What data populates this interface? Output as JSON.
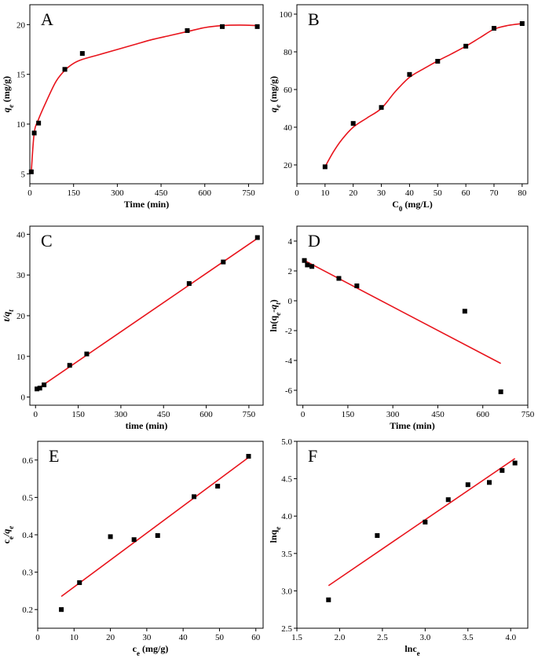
{
  "chart_data": [
    {
      "panel": "A",
      "type": "scatter",
      "letter": "A",
      "xlabel": [
        "Time (min)"
      ],
      "ylabel": [
        {
          "t": "q",
          "it": true
        },
        {
          "t": "e",
          "sub": true,
          "it": true
        },
        {
          "t": " (mg/g)"
        }
      ],
      "xlim": [
        0,
        800
      ],
      "ylim": [
        4,
        22
      ],
      "xticks": [
        0,
        150,
        300,
        450,
        600,
        750
      ],
      "yticks": [
        5,
        10,
        15,
        20
      ],
      "points": [
        [
          5,
          5.2
        ],
        [
          15,
          9.1
        ],
        [
          30,
          10.1
        ],
        [
          120,
          15.5
        ],
        [
          180,
          17.1
        ],
        [
          540,
          19.4
        ],
        [
          660,
          19.8
        ],
        [
          780,
          19.8
        ]
      ],
      "curve": [
        [
          5,
          5.2
        ],
        [
          15,
          9.1
        ],
        [
          30,
          10.5
        ],
        [
          60,
          12.5
        ],
        [
          90,
          14.3
        ],
        [
          120,
          15.4
        ],
        [
          150,
          16.1
        ],
        [
          180,
          16.5
        ],
        [
          240,
          17.0
        ],
        [
          300,
          17.5
        ],
        [
          360,
          18.0
        ],
        [
          420,
          18.5
        ],
        [
          480,
          18.9
        ],
        [
          540,
          19.3
        ],
        [
          600,
          19.7
        ],
        [
          660,
          19.9
        ],
        [
          720,
          19.95
        ],
        [
          780,
          19.9
        ]
      ],
      "legend": false
    },
    {
      "panel": "B",
      "type": "scatter",
      "letter": "B",
      "xlabel": [
        {
          "t": "C"
        },
        {
          "t": "0",
          "sub": true
        },
        {
          "t": " (mg/L)"
        }
      ],
      "ylabel": [
        {
          "t": "q",
          "it": true
        },
        {
          "t": "e",
          "sub": true,
          "it": true
        },
        {
          "t": " (mg/g)"
        }
      ],
      "xlim": [
        0,
        82
      ],
      "ylim": [
        10,
        105
      ],
      "xticks": [
        0,
        10,
        20,
        30,
        40,
        50,
        60,
        70,
        80
      ],
      "yticks": [
        20,
        40,
        60,
        80,
        100
      ],
      "points": [
        [
          10,
          19
        ],
        [
          20,
          42
        ],
        [
          30,
          50.5
        ],
        [
          40,
          68
        ],
        [
          50,
          75
        ],
        [
          60,
          83
        ],
        [
          70,
          92.5
        ],
        [
          80,
          95
        ]
      ],
      "curve": [
        [
          10,
          19
        ],
        [
          13,
          27
        ],
        [
          16,
          33.5
        ],
        [
          20,
          40
        ],
        [
          25,
          45
        ],
        [
          30,
          50
        ],
        [
          35,
          59
        ],
        [
          40,
          66.5
        ],
        [
          45,
          71
        ],
        [
          50,
          75.2
        ],
        [
          55,
          79
        ],
        [
          60,
          83
        ],
        [
          65,
          87.5
        ],
        [
          70,
          92
        ],
        [
          75,
          94
        ],
        [
          80,
          95
        ]
      ],
      "legend": false
    },
    {
      "panel": "C",
      "type": "scatter",
      "letter": "C",
      "xlabel": [
        "time (min)"
      ],
      "ylabel": [
        {
          "t": "t/q",
          "it": true
        },
        {
          "t": "t",
          "sub": true,
          "it": true
        }
      ],
      "xlim": [
        -20,
        800
      ],
      "ylim": [
        -2,
        42
      ],
      "xticks": [
        0,
        150,
        300,
        450,
        600,
        750
      ],
      "yticks": [
        0,
        10,
        20,
        30,
        40
      ],
      "points": [
        [
          5,
          2.0
        ],
        [
          15,
          2.2
        ],
        [
          30,
          3.0
        ],
        [
          120,
          7.8
        ],
        [
          180,
          10.6
        ],
        [
          540,
          27.9
        ],
        [
          660,
          33.2
        ],
        [
          780,
          39.2
        ]
      ],
      "fit_line": [
        [
          0,
          1.7
        ],
        [
          780,
          39.0
        ]
      ],
      "legend": false
    },
    {
      "panel": "D",
      "type": "scatter",
      "letter": "D",
      "xlabel": [
        "Time (min)"
      ],
      "ylabel": [
        {
          "t": "ln(q",
          "it": false
        },
        {
          "t": "e",
          "sub": true,
          "it": true
        },
        {
          "t": "-q",
          "it": true
        },
        {
          "t": "t",
          "sub": true,
          "it": true
        },
        {
          "t": ")"
        }
      ],
      "xlim": [
        -20,
        750
      ],
      "ylim": [
        -7,
        5
      ],
      "xticks": [
        0,
        150,
        300,
        450,
        600,
        750
      ],
      "yticks": [
        -6,
        -4,
        -2,
        0,
        2,
        4
      ],
      "points": [
        [
          5,
          2.7
        ],
        [
          15,
          2.4
        ],
        [
          30,
          2.3
        ],
        [
          120,
          1.5
        ],
        [
          180,
          1.0
        ],
        [
          540,
          -0.7
        ],
        [
          660,
          -6.1
        ]
      ],
      "fit_line": [
        [
          5,
          2.7
        ],
        [
          660,
          -4.2
        ]
      ],
      "legend": false
    },
    {
      "panel": "E",
      "type": "scatter",
      "letter": "E",
      "xlabel": [
        {
          "t": "c"
        },
        {
          "t": "e",
          "sub": true
        },
        {
          "t": " (mg/g)"
        }
      ],
      "ylabel": [
        {
          "t": "c"
        },
        {
          "t": "e",
          "sub": true
        },
        {
          "t": "/q",
          "it": true
        },
        {
          "t": "e",
          "sub": true,
          "it": true
        }
      ],
      "xlim": [
        0,
        62
      ],
      "ylim": [
        0.15,
        0.65
      ],
      "xticks": [
        0,
        10,
        20,
        30,
        40,
        50,
        60
      ],
      "yticks": [
        0.2,
        0.3,
        0.4,
        0.5,
        0.6
      ],
      "points": [
        [
          6.5,
          0.2
        ],
        [
          11.5,
          0.272
        ],
        [
          20,
          0.395
        ],
        [
          26.5,
          0.387
        ],
        [
          33,
          0.398
        ],
        [
          43,
          0.502
        ],
        [
          49.5,
          0.53
        ],
        [
          58,
          0.61
        ]
      ],
      "fit_line": [
        [
          6.5,
          0.235
        ],
        [
          58,
          0.607
        ]
      ],
      "legend": false
    },
    {
      "panel": "F",
      "type": "scatter",
      "letter": "F",
      "xlabel": [
        "lnc",
        {
          "t": "e",
          "sub": true
        }
      ],
      "ylabel": [
        {
          "t": "lnq"
        },
        {
          "t": "e",
          "sub": true,
          "it": true
        }
      ],
      "xlim": [
        1.5,
        4.2
      ],
      "ylim": [
        2.5,
        5.0
      ],
      "xticks": [
        1.5,
        2.0,
        2.5,
        3.0,
        3.5,
        4.0
      ],
      "yticks": [
        2.5,
        3.0,
        3.5,
        4.0,
        4.5,
        5.0
      ],
      "xtick_labels": [
        "1.5",
        "2.0",
        "2.5",
        "3.0",
        "3.5",
        "4.0"
      ],
      "ytick_labels": [
        "2.5",
        "3.0",
        "3.5",
        "4.0",
        "4.5",
        "5.0"
      ],
      "points": [
        [
          1.87,
          2.88
        ],
        [
          2.44,
          3.74
        ],
        [
          3.0,
          3.92
        ],
        [
          3.27,
          4.22
        ],
        [
          3.5,
          4.42
        ],
        [
          3.75,
          4.45
        ],
        [
          3.9,
          4.61
        ],
        [
          4.05,
          4.71
        ]
      ],
      "fit_line": [
        [
          1.87,
          3.07
        ],
        [
          4.05,
          4.77
        ]
      ],
      "legend": false
    }
  ],
  "colors": {
    "fit": "#e8141c",
    "marker": "#000000",
    "axis": "#000000"
  }
}
